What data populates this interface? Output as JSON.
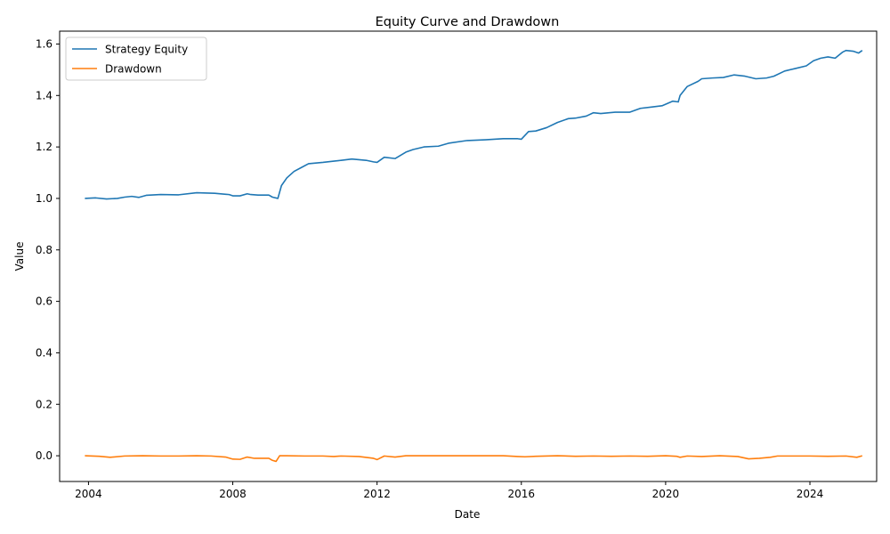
{
  "chart_data": {
    "type": "line",
    "title": "Equity Curve and Drawdown",
    "xlabel": "Date",
    "ylabel": "Value",
    "xlim": [
      2003.2,
      2025.85
    ],
    "ylim": [
      -0.1,
      1.65
    ],
    "x_ticks": [
      2004,
      2008,
      2012,
      2016,
      2020,
      2024
    ],
    "y_ticks": [
      0.0,
      0.2,
      0.4,
      0.6,
      0.8,
      1.0,
      1.2,
      1.4,
      1.6
    ],
    "y_tick_labels": [
      "0.0",
      "0.2",
      "0.4",
      "0.6",
      "0.8",
      "1.0",
      "1.2",
      "1.4",
      "1.6"
    ],
    "grid": false,
    "legend_position": "upper-left",
    "series": [
      {
        "name": "Strategy Equity",
        "color": "#1f77b4",
        "x": [
          2003.9,
          2004.2,
          2004.5,
          2004.8,
          2005.0,
          2005.2,
          2005.4,
          2005.6,
          2006.0,
          2006.5,
          2007.0,
          2007.5,
          2007.9,
          2008.0,
          2008.2,
          2008.4,
          2008.5,
          2008.7,
          2009.0,
          2009.1,
          2009.25,
          2009.35,
          2009.5,
          2009.7,
          2009.9,
          2010.1,
          2010.5,
          2010.8,
          2011.0,
          2011.3,
          2011.7,
          2011.9,
          2012.0,
          2012.2,
          2012.5,
          2012.8,
          2013.0,
          2013.3,
          2013.7,
          2014.0,
          2014.5,
          2015.0,
          2015.5,
          2015.9,
          2016.0,
          2016.2,
          2016.4,
          2016.7,
          2017.0,
          2017.3,
          2017.5,
          2017.8,
          2018.0,
          2018.2,
          2018.6,
          2019.0,
          2019.3,
          2019.6,
          2019.9,
          2020.2,
          2020.35,
          2020.4,
          2020.6,
          2020.9,
          2021.0,
          2021.3,
          2021.6,
          2021.9,
          2022.2,
          2022.5,
          2022.8,
          2023.0,
          2023.3,
          2023.6,
          2023.9,
          2024.1,
          2024.3,
          2024.5,
          2024.7,
          2024.9,
          2025.0,
          2025.2,
          2025.35,
          2025.45
        ],
        "values": [
          1.0,
          1.002,
          0.998,
          1.0,
          1.005,
          1.008,
          1.004,
          1.012,
          1.015,
          1.014,
          1.022,
          1.02,
          1.015,
          1.01,
          1.01,
          1.018,
          1.015,
          1.013,
          1.013,
          1.005,
          1.0,
          1.05,
          1.08,
          1.105,
          1.12,
          1.135,
          1.14,
          1.145,
          1.148,
          1.153,
          1.148,
          1.142,
          1.14,
          1.16,
          1.155,
          1.18,
          1.19,
          1.2,
          1.203,
          1.215,
          1.225,
          1.228,
          1.232,
          1.232,
          1.23,
          1.26,
          1.262,
          1.275,
          1.295,
          1.31,
          1.312,
          1.32,
          1.333,
          1.33,
          1.335,
          1.335,
          1.35,
          1.355,
          1.36,
          1.378,
          1.375,
          1.4,
          1.435,
          1.455,
          1.465,
          1.468,
          1.47,
          1.48,
          1.475,
          1.465,
          1.468,
          1.475,
          1.495,
          1.505,
          1.515,
          1.535,
          1.545,
          1.55,
          1.545,
          1.568,
          1.575,
          1.572,
          1.565,
          1.575
        ]
      },
      {
        "name": "Drawdown",
        "color": "#ff7f0e",
        "x": [
          2003.9,
          2004.3,
          2004.6,
          2005.0,
          2005.5,
          2006.0,
          2006.5,
          2007.0,
          2007.4,
          2007.8,
          2008.0,
          2008.2,
          2008.4,
          2008.6,
          2009.0,
          2009.1,
          2009.2,
          2009.3,
          2009.5,
          2010.0,
          2010.5,
          2010.8,
          2011.0,
          2011.5,
          2011.9,
          2012.0,
          2012.2,
          2012.5,
          2012.8,
          2013.5,
          2014.5,
          2015.5,
          2015.9,
          2016.1,
          2016.4,
          2017.0,
          2017.5,
          2018.0,
          2018.5,
          2019.0,
          2019.5,
          2020.0,
          2020.3,
          2020.4,
          2020.6,
          2021.0,
          2021.5,
          2022.0,
          2022.3,
          2022.6,
          2022.9,
          2023.1,
          2023.5,
          2024.0,
          2024.5,
          2025.0,
          2025.3,
          2025.45
        ],
        "values": [
          0.0,
          -0.002,
          -0.006,
          -0.001,
          0.0,
          -0.001,
          -0.001,
          0.0,
          -0.001,
          -0.005,
          -0.013,
          -0.014,
          -0.005,
          -0.01,
          -0.01,
          -0.018,
          -0.022,
          0.0,
          0.0,
          -0.001,
          -0.001,
          -0.003,
          -0.001,
          -0.003,
          -0.01,
          -0.015,
          -0.001,
          -0.005,
          0.0,
          0.0,
          0.0,
          0.0,
          -0.003,
          -0.004,
          -0.002,
          0.0,
          -0.002,
          -0.001,
          -0.002,
          -0.001,
          -0.002,
          0.0,
          -0.002,
          -0.006,
          -0.001,
          -0.003,
          0.0,
          -0.003,
          -0.012,
          -0.01,
          -0.006,
          -0.001,
          -0.001,
          -0.001,
          -0.002,
          -0.001,
          -0.006,
          0.0
        ]
      }
    ]
  }
}
